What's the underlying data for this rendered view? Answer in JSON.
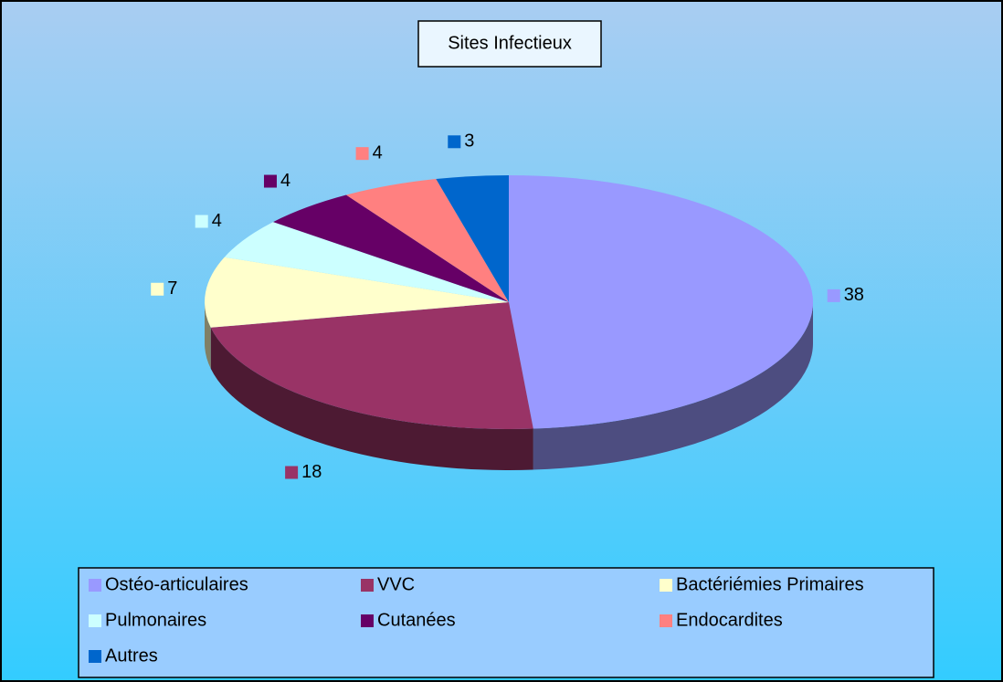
{
  "chart_data": {
    "type": "pie",
    "title": "Sites Infectieux",
    "categories": [
      "Ostéo-articulaires",
      "VVC",
      "Bactériémies Primaires",
      "Pulmonaires",
      "Cutanées",
      "Endocardites",
      "Autres"
    ],
    "values": [
      38,
      18,
      7,
      4,
      4,
      4,
      3
    ],
    "colors": [
      "#9999ff",
      "#993366",
      "#ffffcc",
      "#ccffff",
      "#660066",
      "#ff8080",
      "#0066cc"
    ],
    "legend": "bottom"
  }
}
